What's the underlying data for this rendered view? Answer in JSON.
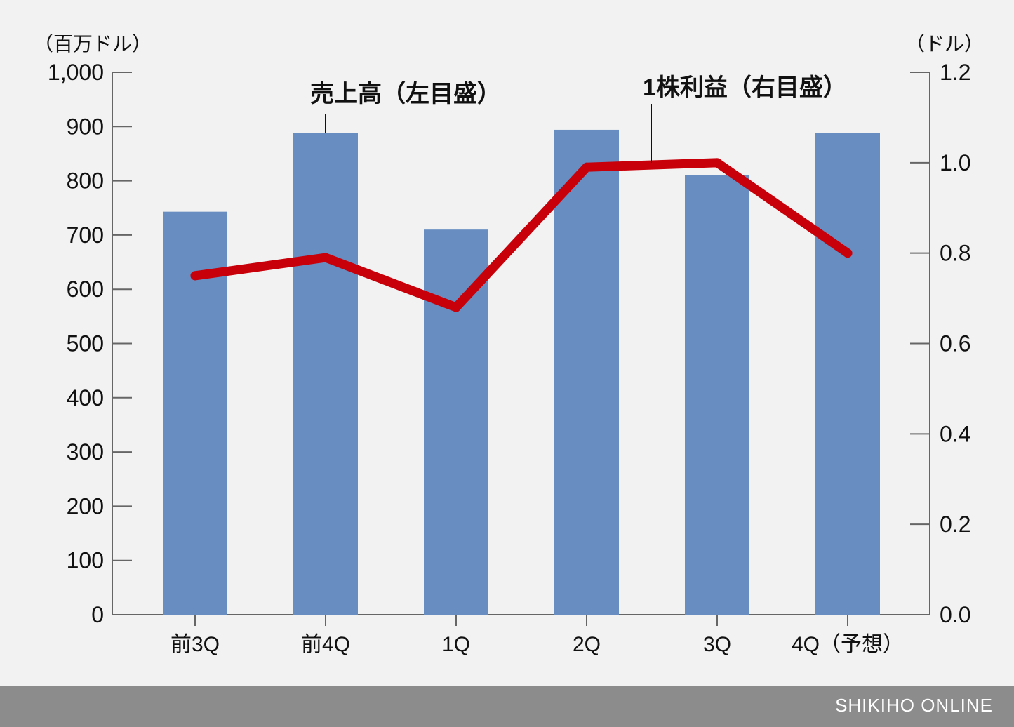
{
  "chart_data": {
    "type": "bar",
    "categories": [
      "前3Q",
      "前4Q",
      "1Q",
      "2Q",
      "3Q",
      "4Q（予想）"
    ],
    "series": [
      {
        "name": "売上高（左目盛）",
        "type": "bar",
        "axis": "left",
        "values": [
          743,
          888,
          710,
          894,
          810,
          888
        ],
        "color": "#678dc1"
      },
      {
        "name": "1株利益（右目盛）",
        "type": "line",
        "axis": "right",
        "values": [
          0.75,
          0.79,
          0.68,
          0.99,
          1.0,
          0.8
        ],
        "color": "#c8000a"
      }
    ],
    "y_left": {
      "unit": "（百万ドル）",
      "ylim": [
        0,
        1000
      ],
      "ticks": [
        "0",
        "100",
        "200",
        "300",
        "400",
        "500",
        "600",
        "700",
        "800",
        "900",
        "1,000"
      ]
    },
    "y_right": {
      "unit": "（ドル）",
      "ylim": [
        0,
        1.2
      ],
      "ticks": [
        "0.0",
        "0.2",
        "0.4",
        "0.6",
        "0.8",
        "1.0",
        "1.2"
      ]
    },
    "grid": false,
    "legend": "inline-callouts"
  },
  "footer": {
    "brand": "SHIKIHO ONLINE"
  }
}
